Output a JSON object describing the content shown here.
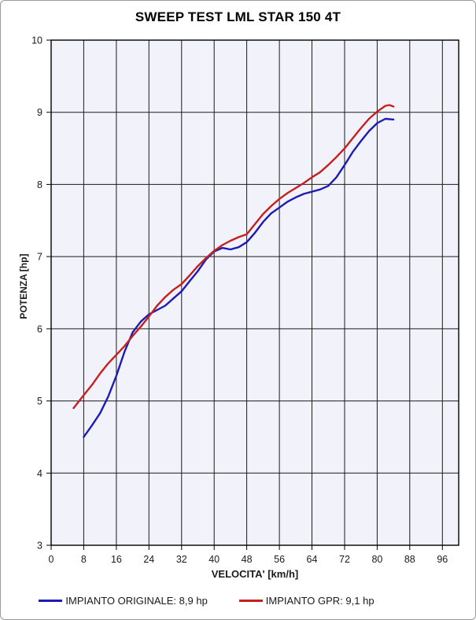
{
  "chart_data": {
    "type": "line",
    "title": "SWEEP TEST LML STAR 150 4T",
    "xlabel": "VELOCITA' [km/h]",
    "ylabel": "POTENZA [hp]",
    "xlim": [
      0,
      100
    ],
    "ylim": [
      3,
      10
    ],
    "x_ticks": [
      0,
      8,
      16,
      24,
      32,
      40,
      48,
      56,
      64,
      72,
      80,
      88,
      96
    ],
    "y_ticks": [
      3,
      4,
      5,
      6,
      7,
      8,
      9,
      10
    ],
    "grid": true,
    "legend_position": "bottom",
    "colors": {
      "plot_bg": "#F2F3FA",
      "grid": "#1A1A1A",
      "frame": "#000000",
      "tick_text": "#1A1A1A"
    },
    "series": [
      {
        "name": "IMPIANTO ORIGINALE: 8,9 hp",
        "color": "#1C1CB4",
        "points": [
          [
            8,
            4.5
          ],
          [
            10,
            4.66
          ],
          [
            12,
            4.83
          ],
          [
            14,
            5.06
          ],
          [
            16,
            5.35
          ],
          [
            18,
            5.68
          ],
          [
            20,
            5.95
          ],
          [
            22,
            6.1
          ],
          [
            24,
            6.2
          ],
          [
            26,
            6.26
          ],
          [
            28,
            6.32
          ],
          [
            30,
            6.42
          ],
          [
            32,
            6.52
          ],
          [
            34,
            6.66
          ],
          [
            36,
            6.8
          ],
          [
            38,
            6.96
          ],
          [
            40,
            7.07
          ],
          [
            42,
            7.12
          ],
          [
            44,
            7.1
          ],
          [
            46,
            7.13
          ],
          [
            48,
            7.2
          ],
          [
            50,
            7.33
          ],
          [
            52,
            7.48
          ],
          [
            54,
            7.6
          ],
          [
            56,
            7.68
          ],
          [
            58,
            7.76
          ],
          [
            60,
            7.82
          ],
          [
            62,
            7.87
          ],
          [
            64,
            7.9
          ],
          [
            66,
            7.93
          ],
          [
            68,
            7.98
          ],
          [
            70,
            8.1
          ],
          [
            72,
            8.27
          ],
          [
            74,
            8.45
          ],
          [
            76,
            8.6
          ],
          [
            78,
            8.74
          ],
          [
            80,
            8.85
          ],
          [
            82,
            8.91
          ],
          [
            84,
            8.9
          ]
        ]
      },
      {
        "name": "IMPIANTO GPR: 9,1 hp",
        "color": "#C42020",
        "points": [
          [
            5.5,
            4.9
          ],
          [
            8,
            5.08
          ],
          [
            10,
            5.22
          ],
          [
            12,
            5.38
          ],
          [
            14,
            5.52
          ],
          [
            16,
            5.64
          ],
          [
            18,
            5.76
          ],
          [
            20,
            5.9
          ],
          [
            22,
            6.03
          ],
          [
            24,
            6.17
          ],
          [
            26,
            6.32
          ],
          [
            28,
            6.44
          ],
          [
            30,
            6.54
          ],
          [
            32,
            6.62
          ],
          [
            34,
            6.74
          ],
          [
            36,
            6.87
          ],
          [
            38,
            6.98
          ],
          [
            40,
            7.08
          ],
          [
            42,
            7.16
          ],
          [
            44,
            7.22
          ],
          [
            46,
            7.27
          ],
          [
            48,
            7.31
          ],
          [
            50,
            7.45
          ],
          [
            52,
            7.59
          ],
          [
            54,
            7.7
          ],
          [
            56,
            7.8
          ],
          [
            58,
            7.88
          ],
          [
            60,
            7.95
          ],
          [
            62,
            8.02
          ],
          [
            64,
            8.1
          ],
          [
            66,
            8.17
          ],
          [
            68,
            8.27
          ],
          [
            70,
            8.38
          ],
          [
            72,
            8.5
          ],
          [
            74,
            8.64
          ],
          [
            76,
            8.78
          ],
          [
            78,
            8.91
          ],
          [
            80,
            9.01
          ],
          [
            82,
            9.09
          ],
          [
            83,
            9.1
          ],
          [
            84,
            9.08
          ]
        ]
      }
    ]
  }
}
